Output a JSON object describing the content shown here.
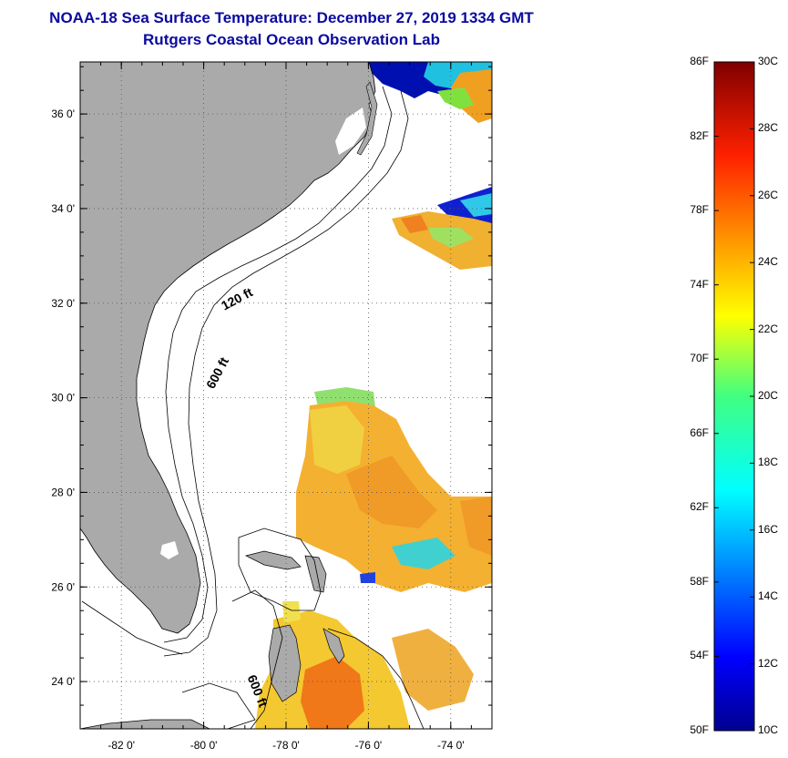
{
  "title": {
    "line1": "NOAA-18 Sea Surface Temperature:  December 27, 2019 1334 GMT",
    "line2": "Rutgers Coastal Ocean Observation Lab"
  },
  "map": {
    "lat_labels": [
      "36 0'",
      "34 0'",
      "32 0'",
      "30 0'",
      "28 0'",
      "26 0'",
      "24 0'"
    ],
    "lat_values": [
      36,
      34,
      32,
      30,
      28,
      26,
      24
    ],
    "lon_labels": [
      "-82 0'",
      "-80 0'",
      "-78 0'",
      "-76 0'",
      "-74 0'"
    ],
    "lon_values": [
      -82,
      -80,
      -78,
      -76,
      -74
    ],
    "lat_range": [
      23,
      37.1
    ],
    "lon_range": [
      -83,
      -73
    ],
    "isobath_labels": [
      {
        "id": "label-120ft",
        "text": "120 ft"
      },
      {
        "id": "label-600ft-north",
        "text": "600 ft"
      },
      {
        "id": "label-600ft-south",
        "text": "600 ft"
      }
    ],
    "colors": {
      "land": "#aaaaaa",
      "water_no_data": "#ffffff",
      "grid": "#555555"
    }
  },
  "colorbar": {
    "f_labels": [
      "86F",
      "82F",
      "78F",
      "74F",
      "70F",
      "66F",
      "62F",
      "58F",
      "54F",
      "50F"
    ],
    "c_labels": [
      "30C",
      "28C",
      "26C",
      "24C",
      "22C",
      "20C",
      "18C",
      "16C",
      "14C",
      "12C",
      "10C"
    ],
    "range_c": [
      10,
      30
    ],
    "range_f": [
      50,
      86
    ],
    "colormap": "jet"
  }
}
